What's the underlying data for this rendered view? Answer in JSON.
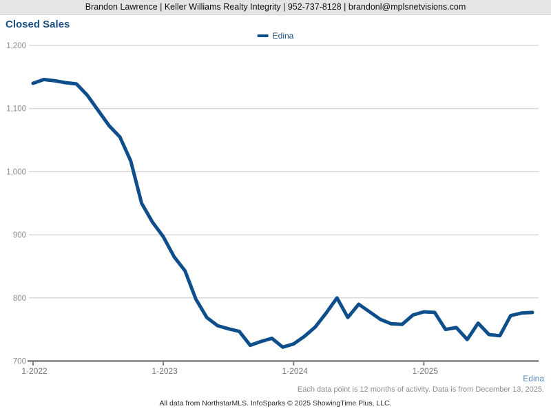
{
  "header": {
    "contact_line": "Brandon Lawrence | Keller Williams Realty Integrity | 952-737-8128 | brandonl@mplsnetvisions.com"
  },
  "title": "Closed Sales",
  "legend": {
    "label": "Edina"
  },
  "footer": {
    "series_label": "Edina",
    "note": "Each data point is 12 months of activity. Data is from December 13, 2025.",
    "attribution": "All data from NorthstarMLS. InfoSparks © 2025 ShowingTime Plus, LLC."
  },
  "colors": {
    "line": "#0e4e8b",
    "title_text": "#1d5080",
    "grid": "#c9c9c9",
    "axis": "#7f7f7f",
    "y_tick_text": "#8c8c8c",
    "x_tick_text": "#737373",
    "footer_series_text": "#5b87b7",
    "footer_note_text": "#8c8c8c",
    "header_bg": "#e5e5e5"
  },
  "chart_data": {
    "type": "line",
    "title": "Closed Sales",
    "series": [
      {
        "name": "Edina",
        "values": [
          1140,
          1146,
          1144,
          1141,
          1139,
          1121,
          1097,
          1073,
          1055,
          1017,
          950,
          920,
          897,
          865,
          843,
          798,
          769,
          756,
          751,
          747,
          725,
          731,
          736,
          722,
          727,
          739,
          754,
          776,
          800,
          769,
          790,
          778,
          766,
          759,
          758,
          773,
          778,
          777,
          750,
          753,
          734,
          760,
          742,
          740,
          772,
          776,
          777
        ]
      }
    ],
    "x": [
      "1-2022",
      "2-2022",
      "3-2022",
      "4-2022",
      "5-2022",
      "6-2022",
      "7-2022",
      "8-2022",
      "9-2022",
      "10-2022",
      "11-2022",
      "12-2022",
      "1-2023",
      "2-2023",
      "3-2023",
      "4-2023",
      "5-2023",
      "6-2023",
      "7-2023",
      "8-2023",
      "9-2023",
      "10-2023",
      "11-2023",
      "12-2023",
      "1-2024",
      "2-2024",
      "3-2024",
      "4-2024",
      "5-2024",
      "6-2024",
      "7-2024",
      "8-2024",
      "9-2024",
      "10-2024",
      "11-2024",
      "12-2024",
      "1-2025",
      "2-2025",
      "3-2025",
      "4-2025",
      "5-2025",
      "6-2025",
      "7-2025",
      "8-2025",
      "9-2025",
      "10-2025",
      "11-2025"
    ],
    "ylim": [
      700,
      1200
    ],
    "y_ticks": [
      700,
      800,
      900,
      1000,
      1100,
      1200
    ],
    "y_tick_labels": [
      "700",
      "800",
      "900",
      "1,000",
      "1,100",
      "1,200"
    ],
    "x_tick_labels": [
      "1-2022",
      "1-2023",
      "1-2024",
      "1-2025"
    ],
    "x_tick_month_indices": [
      0,
      12,
      24,
      36
    ],
    "grid": "horizontal",
    "legend_position": "top-center"
  }
}
